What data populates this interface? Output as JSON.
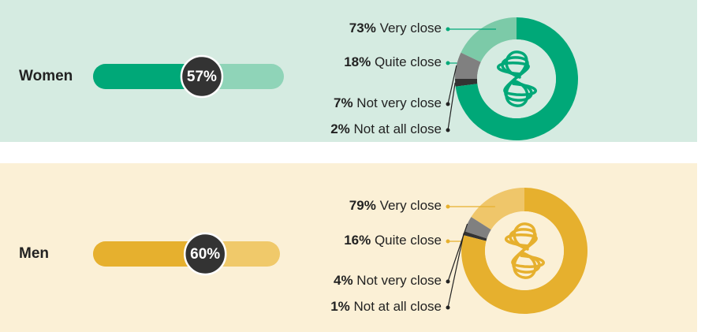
{
  "chart_data": [
    {
      "type": "progress",
      "categories": [
        "Women"
      ],
      "values": [
        57
      ],
      "value_labels": [
        "57%"
      ],
      "color": "#00a878",
      "track_color": "#8fd4b8",
      "background": "#d5ebe1"
    },
    {
      "type": "donut",
      "categories": [
        "Very close",
        "Quite close",
        "Not very close",
        "Not at all close"
      ],
      "values": [
        73,
        18,
        7,
        2
      ],
      "value_labels": [
        "73%",
        "18%",
        "7%",
        "2%"
      ],
      "colors": [
        "#00a878",
        "#7ccaa8",
        "#808080",
        "#333333"
      ],
      "background": "#d5ebe1"
    },
    {
      "type": "progress",
      "categories": [
        "Men"
      ],
      "values": [
        60
      ],
      "value_labels": [
        "60%"
      ],
      "color": "#e6b02e",
      "track_color": "#f0c96a",
      "background": "#fbf0d6"
    },
    {
      "type": "donut",
      "categories": [
        "Very close",
        "Quite close",
        "Not very close",
        "Not at all close"
      ],
      "values": [
        79,
        16,
        4,
        1
      ],
      "value_labels": [
        "79%",
        "16%",
        "4%",
        "1%"
      ],
      "colors": [
        "#e6b02e",
        "#efc66a",
        "#808080",
        "#333333"
      ],
      "background": "#fbf0d6"
    }
  ]
}
